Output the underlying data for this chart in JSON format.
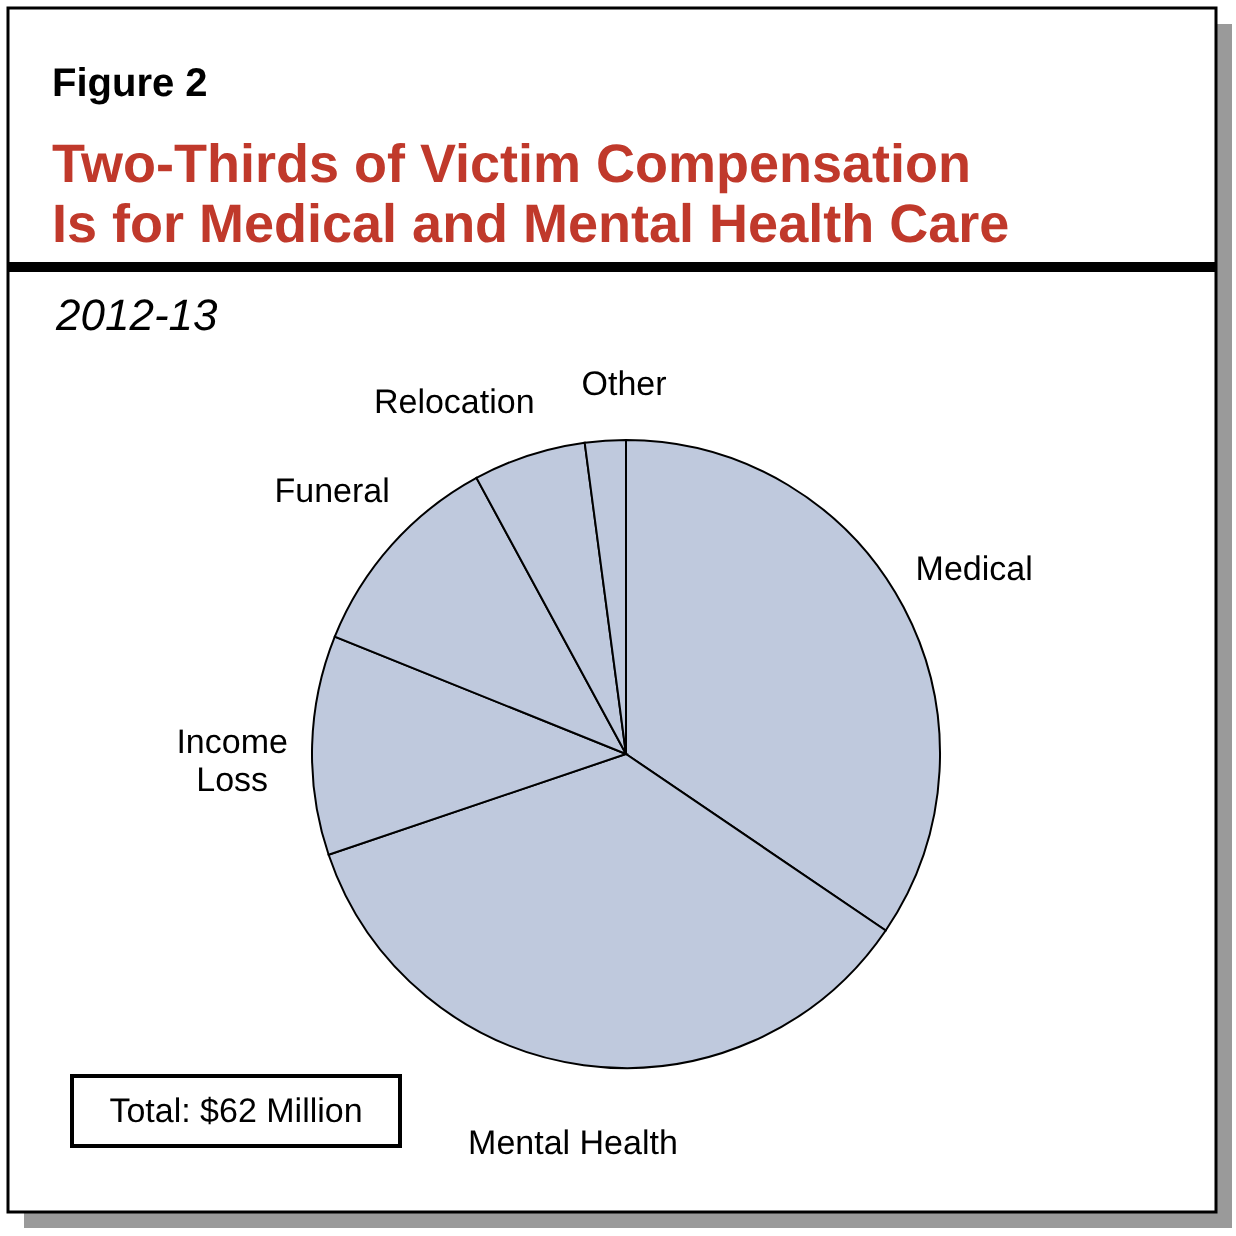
{
  "chart_data": {
    "type": "pie",
    "title": "Two-Thirds of Victim Compensation\nIs for Medical and Mental Health Care",
    "subtitle": "2012-13",
    "categories": [
      "Medical",
      "Mental Health",
      "Income\nLoss",
      "Funeral",
      "Relocation",
      "Other"
    ],
    "values": [
      34.5,
      35.3,
      11.3,
      11.0,
      5.8,
      2.1
    ],
    "colors": [
      "#bfc9dd",
      "#bfc9dd",
      "#bfc9dd",
      "#bfc9dd",
      "#bfc9dd",
      "#bfc9dd"
    ],
    "annotations": [
      "Figure 2",
      "Total: $62 Million"
    ]
  }
}
